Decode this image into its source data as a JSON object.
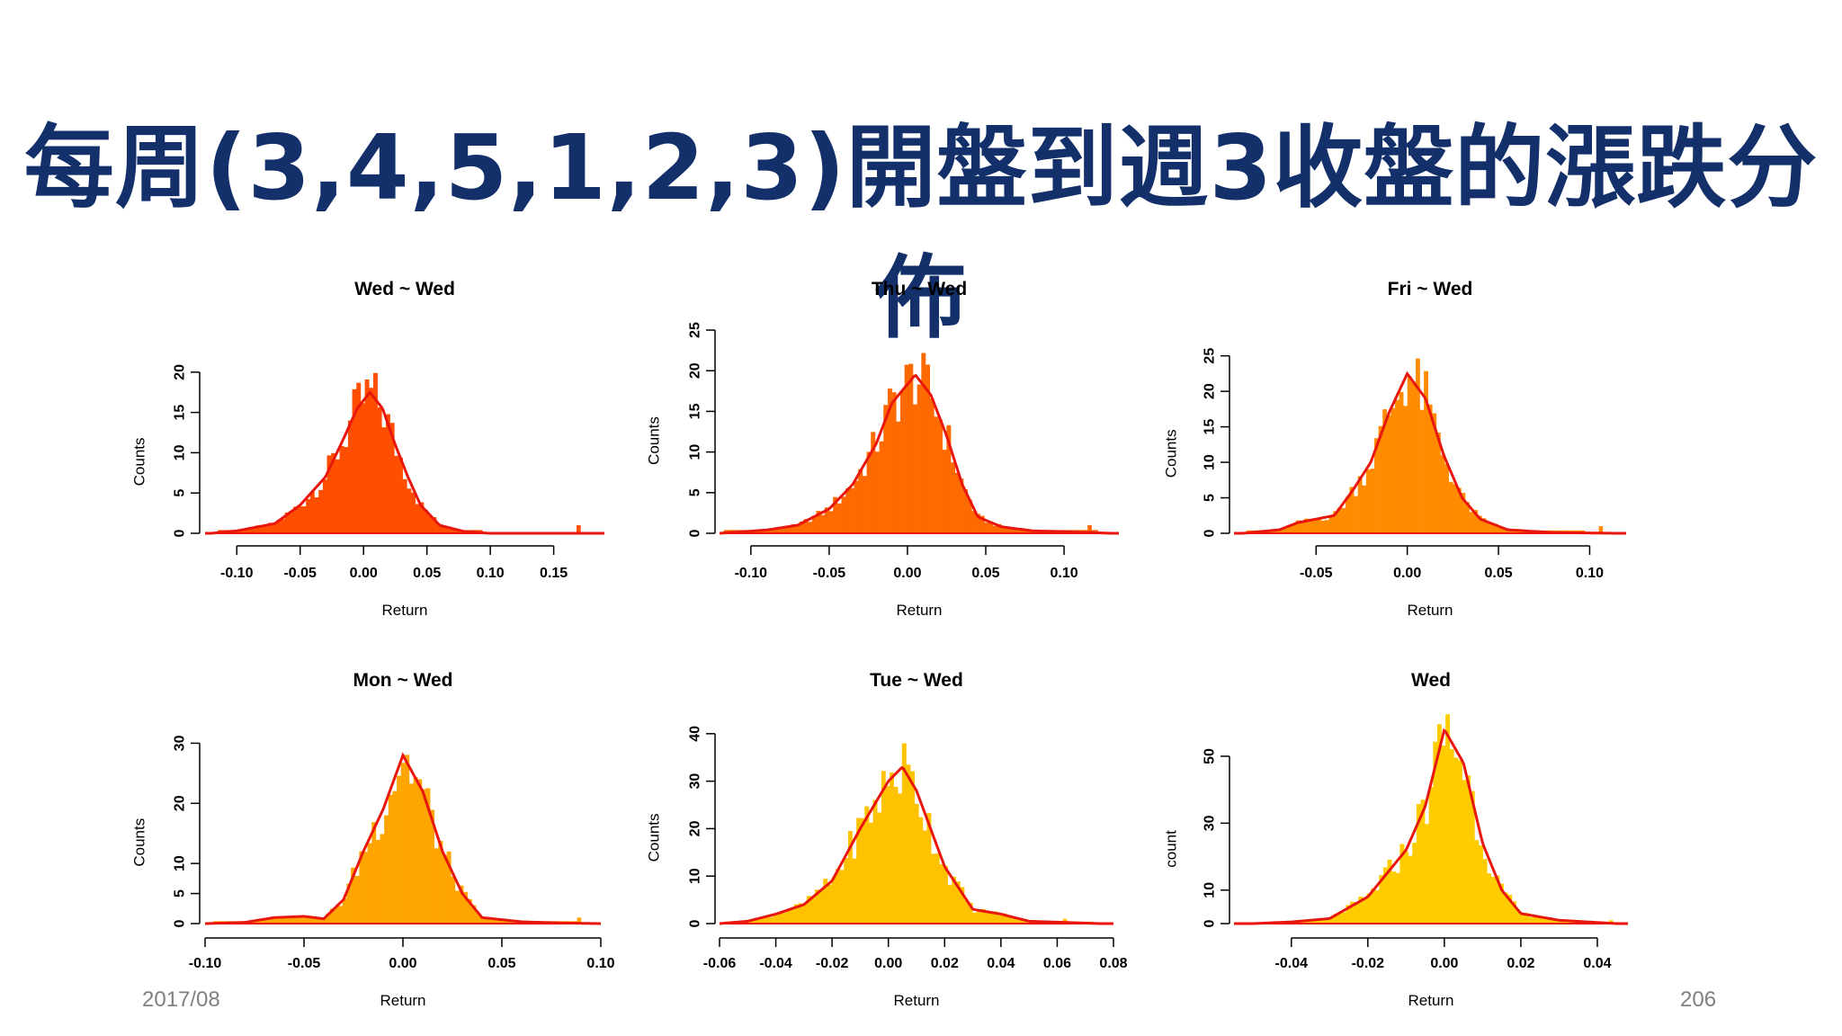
{
  "slide": {
    "title": "每周(3,4,5,1,2,3)開盤到週3收盤的漲跌分佈",
    "date": "2017/08",
    "page": "206"
  },
  "chart_data": [
    {
      "type": "bar",
      "title": "Wed ~ Wed",
      "xlabel": "Return",
      "ylabel": "Counts",
      "xlim": [
        -0.125,
        0.19
      ],
      "xticks": [
        -0.1,
        -0.05,
        0.0,
        0.05,
        0.1,
        0.15
      ],
      "ylim": [
        0,
        24
      ],
      "yticks": [
        0,
        5,
        10,
        15,
        20
      ],
      "color": "#ff4e00",
      "grid": false,
      "density": [
        [
          -0.12,
          0
        ],
        [
          -0.1,
          0.3
        ],
        [
          -0.07,
          1.2
        ],
        [
          -0.05,
          3.5
        ],
        [
          -0.03,
          7
        ],
        [
          -0.015,
          12
        ],
        [
          -0.005,
          15.5
        ],
        [
          0.005,
          17.5
        ],
        [
          0.015,
          15.5
        ],
        [
          0.025,
          11
        ],
        [
          0.035,
          7
        ],
        [
          0.045,
          3.5
        ],
        [
          0.06,
          1
        ],
        [
          0.08,
          0.2
        ],
        [
          0.1,
          0
        ],
        [
          0.185,
          0
        ]
      ],
      "outliers": [
        [
          0.168,
          1
        ]
      ]
    },
    {
      "type": "bar",
      "title": "Thu ~ Wed",
      "xlabel": "Return",
      "ylabel": "Counts",
      "xlim": [
        -0.12,
        0.135
      ],
      "xticks": [
        -0.1,
        -0.05,
        0.0,
        0.05,
        0.1
      ],
      "ylim": [
        0,
        26
      ],
      "yticks": [
        0,
        5,
        10,
        15,
        20,
        25
      ],
      "color": "#ff6a00",
      "grid": false,
      "density": [
        [
          -0.12,
          0
        ],
        [
          -0.09,
          0.4
        ],
        [
          -0.07,
          1
        ],
        [
          -0.05,
          3
        ],
        [
          -0.035,
          6
        ],
        [
          -0.02,
          11
        ],
        [
          -0.01,
          16
        ],
        [
          0.005,
          19.5
        ],
        [
          0.015,
          17
        ],
        [
          0.025,
          12
        ],
        [
          0.035,
          6
        ],
        [
          0.045,
          2
        ],
        [
          0.06,
          0.8
        ],
        [
          0.08,
          0.3
        ],
        [
          0.1,
          0.2
        ],
        [
          0.13,
          0
        ]
      ],
      "outliers": [
        [
          0.115,
          1
        ]
      ]
    },
    {
      "type": "bar",
      "title": "Fri ~ Wed",
      "xlabel": "Return",
      "ylabel": "Counts",
      "xlim": [
        -0.095,
        0.12
      ],
      "xticks": [
        -0.05,
        0.0,
        0.05,
        0.1
      ],
      "ylim": [
        0,
        28
      ],
      "yticks": [
        0,
        5,
        10,
        15,
        20,
        25
      ],
      "color": "#ff8c00",
      "grid": false,
      "density": [
        [
          -0.09,
          0
        ],
        [
          -0.07,
          0.5
        ],
        [
          -0.06,
          1.5
        ],
        [
          -0.05,
          2
        ],
        [
          -0.04,
          2.5
        ],
        [
          -0.03,
          6
        ],
        [
          -0.02,
          10
        ],
        [
          -0.01,
          17
        ],
        [
          0.0,
          22.5
        ],
        [
          0.01,
          19
        ],
        [
          0.02,
          11
        ],
        [
          0.03,
          5
        ],
        [
          0.04,
          2
        ],
        [
          0.055,
          0.5
        ],
        [
          0.08,
          0.1
        ],
        [
          0.115,
          0
        ]
      ],
      "outliers": [
        [
          0.105,
          1
        ]
      ]
    },
    {
      "type": "bar",
      "title": "Mon ~ Wed",
      "xlabel": "Return",
      "ylabel": "Counts",
      "xlim": [
        -0.1,
        0.1
      ],
      "xticks": [
        -0.1,
        -0.05,
        0.0,
        0.05,
        0.1
      ],
      "ylim": [
        0,
        35
      ],
      "yticks": [
        0,
        5,
        10,
        20,
        30
      ],
      "color": "#ffa500",
      "grid": false,
      "density": [
        [
          -0.1,
          0
        ],
        [
          -0.08,
          0.2
        ],
        [
          -0.065,
          1
        ],
        [
          -0.05,
          1.2
        ],
        [
          -0.04,
          0.8
        ],
        [
          -0.03,
          4
        ],
        [
          -0.02,
          12
        ],
        [
          -0.01,
          19
        ],
        [
          0.0,
          28
        ],
        [
          0.01,
          22
        ],
        [
          0.02,
          12
        ],
        [
          0.03,
          5
        ],
        [
          0.04,
          1
        ],
        [
          0.06,
          0.3
        ],
        [
          0.08,
          0.1
        ],
        [
          0.1,
          0
        ]
      ],
      "outliers": [
        [
          0.088,
          1
        ]
      ]
    },
    {
      "type": "bar",
      "title": "Tue ~ Wed",
      "xlabel": "Return",
      "ylabel": "Counts",
      "xlim": [
        -0.06,
        0.08
      ],
      "xticks": [
        -0.06,
        -0.04,
        -0.02,
        0.0,
        0.02,
        0.04,
        0.06,
        0.08
      ],
      "ylim": [
        0,
        43
      ],
      "yticks": [
        0,
        10,
        20,
        30,
        40
      ],
      "color": "#ffc200",
      "grid": false,
      "density": [
        [
          -0.06,
          0
        ],
        [
          -0.05,
          0.5
        ],
        [
          -0.04,
          2
        ],
        [
          -0.03,
          4
        ],
        [
          -0.02,
          9
        ],
        [
          -0.01,
          20
        ],
        [
          0.0,
          30
        ],
        [
          0.005,
          33
        ],
        [
          0.01,
          28
        ],
        [
          0.02,
          12
        ],
        [
          0.03,
          3
        ],
        [
          0.04,
          2
        ],
        [
          0.05,
          0.5
        ],
        [
          0.065,
          0.2
        ],
        [
          0.075,
          0
        ]
      ],
      "outliers": [
        [
          0.062,
          1
        ]
      ]
    },
    {
      "type": "bar",
      "title": "Wed",
      "xlabel": "",
      "ylabel": "count",
      "xlim": [
        -0.055,
        0.048
      ],
      "xticks": [
        -0.04,
        -0.02,
        0.0,
        0.02,
        0.04
      ],
      "ylim": [
        0,
        61
      ],
      "yticks": [
        0,
        10,
        30,
        50
      ],
      "color": "#ffcc00",
      "grid": false,
      "density": [
        [
          -0.05,
          0
        ],
        [
          -0.04,
          0.5
        ],
        [
          -0.03,
          1.5
        ],
        [
          -0.02,
          8
        ],
        [
          -0.01,
          22
        ],
        [
          -0.005,
          35
        ],
        [
          0.0,
          58
        ],
        [
          0.005,
          48
        ],
        [
          0.01,
          24
        ],
        [
          0.015,
          10
        ],
        [
          0.02,
          3
        ],
        [
          0.03,
          1
        ],
        [
          0.045,
          0
        ]
      ],
      "outliers": [
        [
          0.043,
          1
        ]
      ]
    }
  ],
  "shared_xlabel": "Return"
}
